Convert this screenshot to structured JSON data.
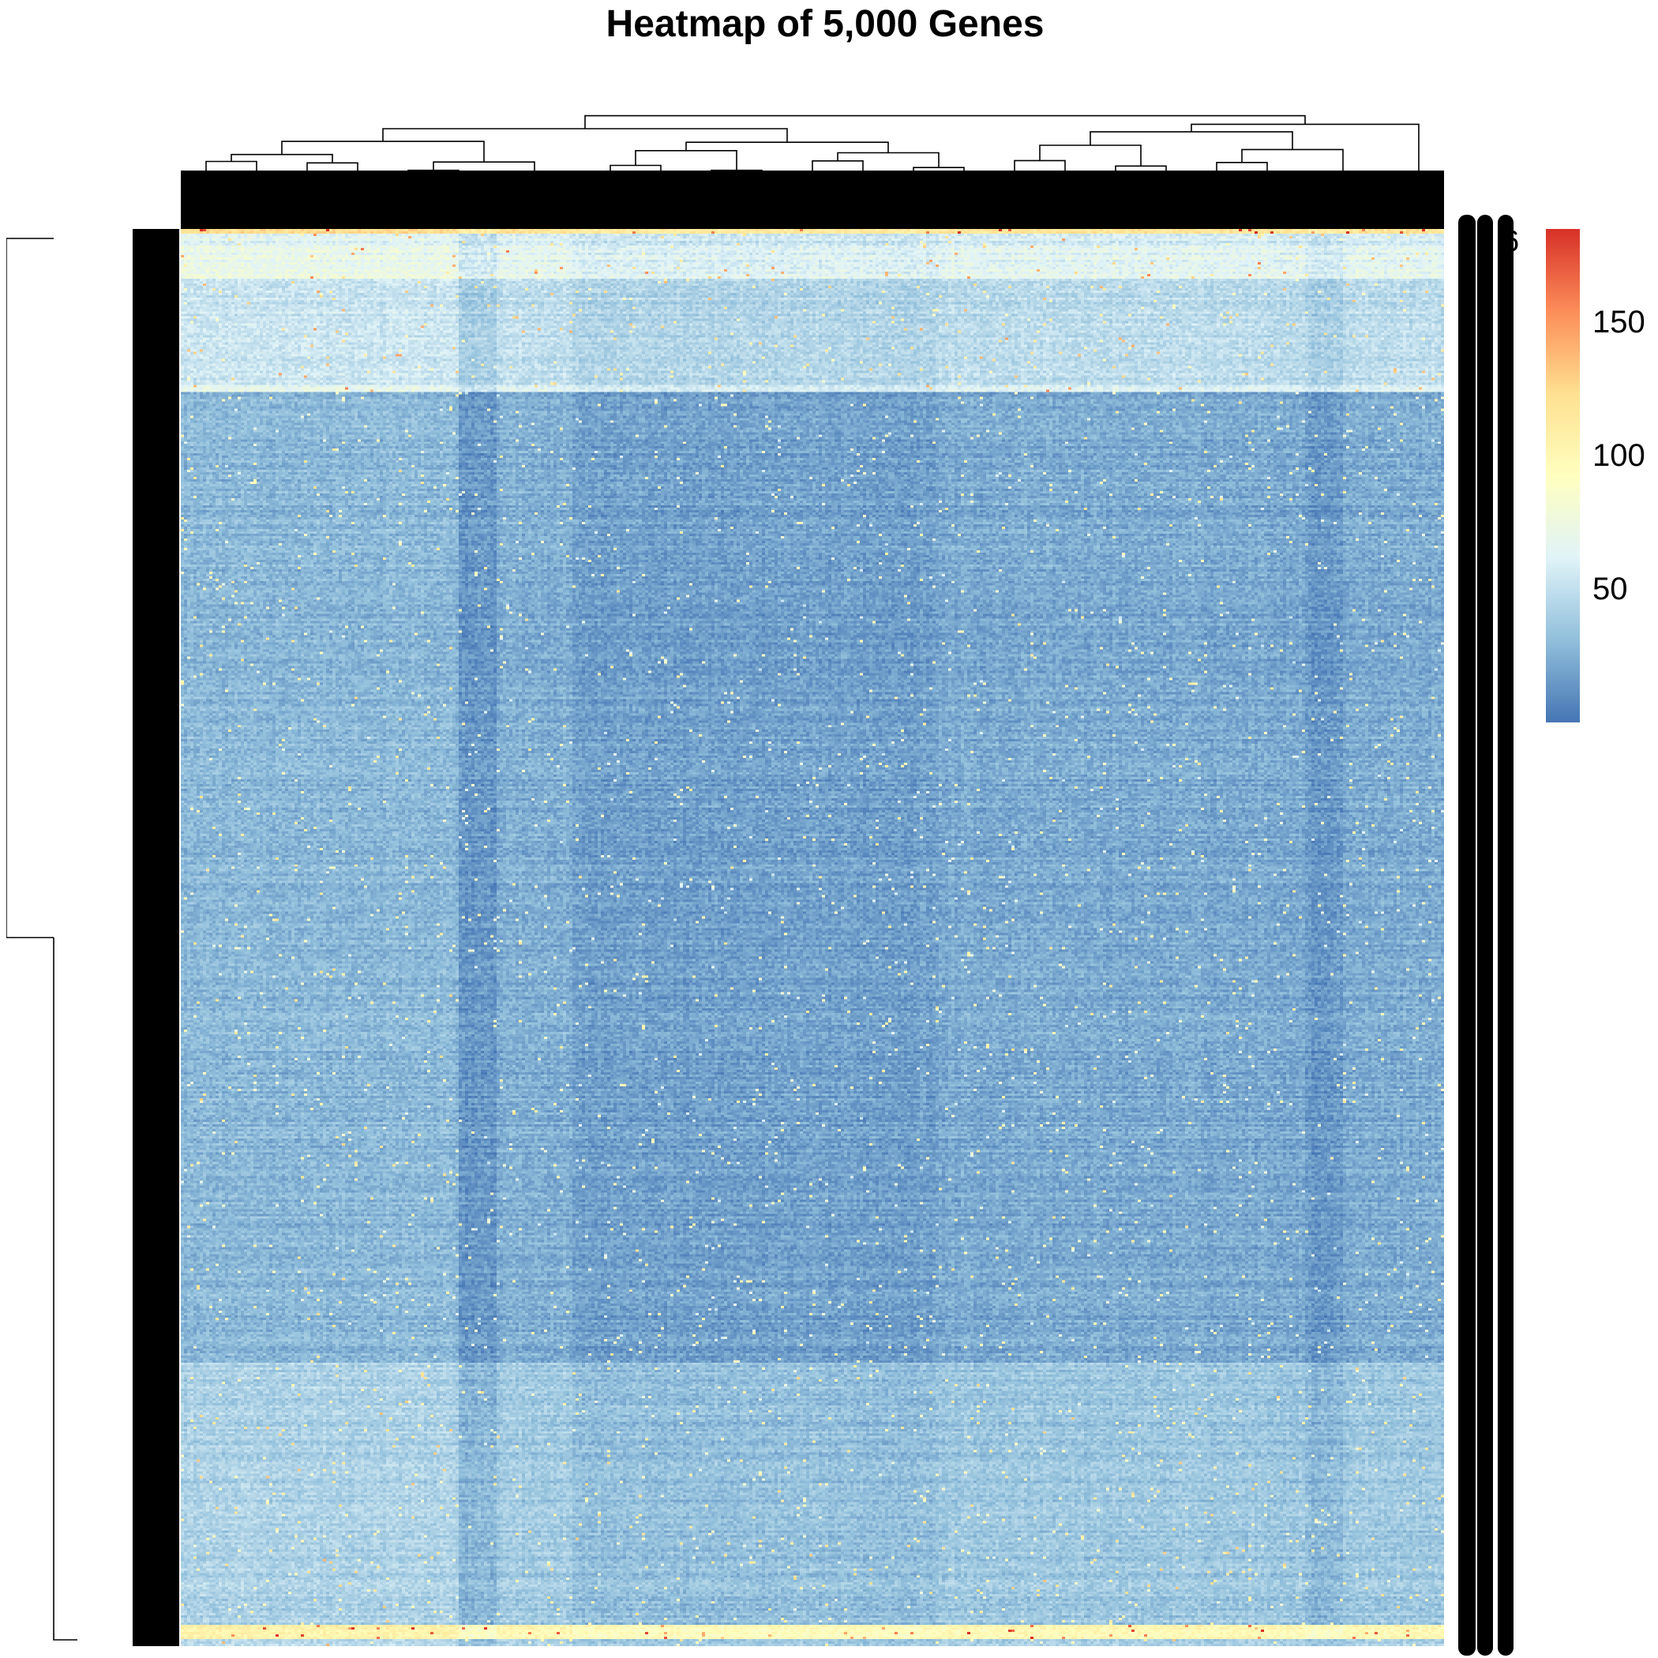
{
  "chart_data": {
    "type": "heatmap",
    "title": "Heatmap of 5,000 Genes",
    "xlabel": "",
    "ylabel": "",
    "rows_described": "genes (rows, hierarchically clustered)",
    "n_rows": 5000,
    "row_dendrogram": true,
    "column_dendrogram": true,
    "color_scale": {
      "colors": [
        "#4575b4",
        "#91bfdb",
        "#e0f3f8",
        "#ffffbf",
        "#fee090",
        "#fc8d59",
        "#d73027"
      ],
      "min": 0,
      "max": 185,
      "legend_ticks": [
        50,
        100,
        150
      ]
    },
    "row_labels_visible": [
      "6"
    ],
    "row_bands": [
      {
        "from": 0.0,
        "to": 0.003,
        "level": 120
      },
      {
        "from": 0.003,
        "to": 0.011,
        "level": 55
      },
      {
        "from": 0.011,
        "to": 0.035,
        "level": 62
      },
      {
        "from": 0.035,
        "to": 0.11,
        "level": 45
      },
      {
        "from": 0.11,
        "to": 0.115,
        "level": 58
      },
      {
        "from": 0.115,
        "to": 0.8,
        "level": 20
      },
      {
        "from": 0.8,
        "to": 0.985,
        "level": 33
      },
      {
        "from": 0.985,
        "to": 0.995,
        "level": 95
      },
      {
        "from": 0.995,
        "to": 1.0,
        "level": 40
      }
    ],
    "column_groups": [
      {
        "from": 0.0,
        "to": 0.22,
        "offset": 8
      },
      {
        "from": 0.22,
        "to": 0.25,
        "offset": -6
      },
      {
        "from": 0.25,
        "to": 0.31,
        "offset": 4
      },
      {
        "from": 0.31,
        "to": 0.6,
        "offset": -2
      },
      {
        "from": 0.6,
        "to": 0.89,
        "offset": 2
      },
      {
        "from": 0.89,
        "to": 0.92,
        "offset": -5
      },
      {
        "from": 0.92,
        "to": 1.0,
        "offset": 3
      }
    ]
  }
}
